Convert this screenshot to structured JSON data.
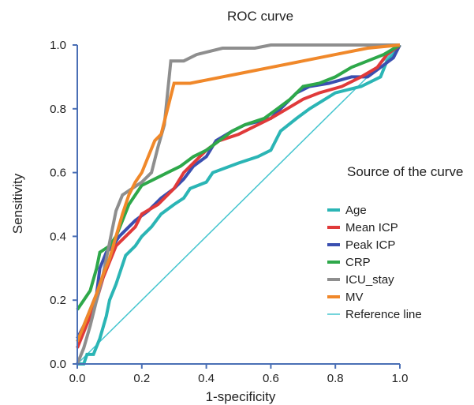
{
  "chart_data": {
    "type": "line",
    "title": "ROC curve",
    "xlabel": "1-specificity",
    "ylabel": "Sensitivity",
    "xlim": [
      0,
      1
    ],
    "ylim": [
      0,
      1
    ],
    "xticks": [
      "0.0",
      "0.2",
      "0.4",
      "0.6",
      "0.8",
      "1.0"
    ],
    "yticks": [
      "0.0",
      "0.2",
      "0.4",
      "0.6",
      "0.8",
      "1.0"
    ],
    "grid": false,
    "legend": {
      "title": "Source of the curve",
      "placement": "right",
      "entries": [
        "Age",
        "Mean ICP",
        "Peak ICP",
        "CRP",
        "ICU_stay",
        "MV",
        "Reference line"
      ]
    },
    "series": [
      {
        "name": "Age",
        "color": "#2bb5b5",
        "points": [
          [
            0.0,
            0.0
          ],
          [
            0.02,
            0.0
          ],
          [
            0.03,
            0.03
          ],
          [
            0.05,
            0.03
          ],
          [
            0.07,
            0.08
          ],
          [
            0.09,
            0.15
          ],
          [
            0.1,
            0.2
          ],
          [
            0.12,
            0.25
          ],
          [
            0.15,
            0.34
          ],
          [
            0.18,
            0.37
          ],
          [
            0.2,
            0.4
          ],
          [
            0.23,
            0.43
          ],
          [
            0.26,
            0.47
          ],
          [
            0.3,
            0.5
          ],
          [
            0.33,
            0.52
          ],
          [
            0.35,
            0.55
          ],
          [
            0.4,
            0.57
          ],
          [
            0.42,
            0.6
          ],
          [
            0.5,
            0.63
          ],
          [
            0.56,
            0.65
          ],
          [
            0.6,
            0.67
          ],
          [
            0.63,
            0.73
          ],
          [
            0.68,
            0.77
          ],
          [
            0.72,
            0.8
          ],
          [
            0.8,
            0.85
          ],
          [
            0.88,
            0.87
          ],
          [
            0.94,
            0.9
          ],
          [
            0.96,
            0.95
          ],
          [
            0.98,
            0.97
          ],
          [
            1.0,
            1.0
          ]
        ]
      },
      {
        "name": "Mean ICP",
        "color": "#e03a3a",
        "points": [
          [
            0.0,
            0.05
          ],
          [
            0.02,
            0.1
          ],
          [
            0.04,
            0.15
          ],
          [
            0.06,
            0.2
          ],
          [
            0.08,
            0.27
          ],
          [
            0.1,
            0.32
          ],
          [
            0.12,
            0.37
          ],
          [
            0.15,
            0.4
          ],
          [
            0.18,
            0.43
          ],
          [
            0.2,
            0.47
          ],
          [
            0.25,
            0.5
          ],
          [
            0.3,
            0.55
          ],
          [
            0.33,
            0.6
          ],
          [
            0.36,
            0.63
          ],
          [
            0.4,
            0.67
          ],
          [
            0.44,
            0.7
          ],
          [
            0.5,
            0.72
          ],
          [
            0.56,
            0.75
          ],
          [
            0.6,
            0.77
          ],
          [
            0.65,
            0.8
          ],
          [
            0.7,
            0.83
          ],
          [
            0.75,
            0.85
          ],
          [
            0.82,
            0.87
          ],
          [
            0.88,
            0.9
          ],
          [
            0.93,
            0.93
          ],
          [
            0.96,
            0.97
          ],
          [
            1.0,
            1.0
          ]
        ]
      },
      {
        "name": "Peak ICP",
        "color": "#3a4fb0",
        "points": [
          [
            0.0,
            0.08
          ],
          [
            0.02,
            0.12
          ],
          [
            0.04,
            0.17
          ],
          [
            0.06,
            0.22
          ],
          [
            0.07,
            0.3
          ],
          [
            0.09,
            0.35
          ],
          [
            0.11,
            0.37
          ],
          [
            0.13,
            0.4
          ],
          [
            0.16,
            0.43
          ],
          [
            0.18,
            0.45
          ],
          [
            0.22,
            0.48
          ],
          [
            0.26,
            0.52
          ],
          [
            0.3,
            0.55
          ],
          [
            0.33,
            0.58
          ],
          [
            0.36,
            0.62
          ],
          [
            0.4,
            0.65
          ],
          [
            0.43,
            0.7
          ],
          [
            0.48,
            0.73
          ],
          [
            0.52,
            0.75
          ],
          [
            0.6,
            0.77
          ],
          [
            0.63,
            0.8
          ],
          [
            0.68,
            0.85
          ],
          [
            0.72,
            0.87
          ],
          [
            0.78,
            0.88
          ],
          [
            0.85,
            0.9
          ],
          [
            0.9,
            0.9
          ],
          [
            0.94,
            0.93
          ],
          [
            0.98,
            0.96
          ],
          [
            1.0,
            1.0
          ]
        ]
      },
      {
        "name": "CRP",
        "color": "#2ea84a",
        "points": [
          [
            0.0,
            0.17
          ],
          [
            0.02,
            0.2
          ],
          [
            0.04,
            0.23
          ],
          [
            0.06,
            0.3
          ],
          [
            0.07,
            0.35
          ],
          [
            0.1,
            0.37
          ],
          [
            0.12,
            0.4
          ],
          [
            0.14,
            0.45
          ],
          [
            0.16,
            0.5
          ],
          [
            0.18,
            0.53
          ],
          [
            0.2,
            0.56
          ],
          [
            0.24,
            0.58
          ],
          [
            0.28,
            0.6
          ],
          [
            0.32,
            0.62
          ],
          [
            0.36,
            0.65
          ],
          [
            0.4,
            0.67
          ],
          [
            0.44,
            0.7
          ],
          [
            0.48,
            0.73
          ],
          [
            0.52,
            0.75
          ],
          [
            0.58,
            0.77
          ],
          [
            0.62,
            0.8
          ],
          [
            0.66,
            0.83
          ],
          [
            0.7,
            0.87
          ],
          [
            0.75,
            0.88
          ],
          [
            0.8,
            0.9
          ],
          [
            0.85,
            0.93
          ],
          [
            0.9,
            0.95
          ],
          [
            0.95,
            0.97
          ],
          [
            1.0,
            1.0
          ]
        ]
      },
      {
        "name": "ICU_stay",
        "color": "#8e8e8e",
        "points": [
          [
            0.0,
            0.0
          ],
          [
            0.02,
            0.05
          ],
          [
            0.04,
            0.12
          ],
          [
            0.06,
            0.2
          ],
          [
            0.08,
            0.28
          ],
          [
            0.1,
            0.38
          ],
          [
            0.12,
            0.48
          ],
          [
            0.14,
            0.53
          ],
          [
            0.17,
            0.55
          ],
          [
            0.2,
            0.57
          ],
          [
            0.23,
            0.6
          ],
          [
            0.25,
            0.68
          ],
          [
            0.27,
            0.75
          ],
          [
            0.28,
            0.85
          ],
          [
            0.29,
            0.95
          ],
          [
            0.33,
            0.95
          ],
          [
            0.37,
            0.97
          ],
          [
            0.41,
            0.98
          ],
          [
            0.45,
            0.99
          ],
          [
            0.5,
            0.99
          ],
          [
            0.55,
            0.99
          ],
          [
            0.6,
            1.0
          ],
          [
            0.65,
            1.0
          ],
          [
            0.7,
            1.0
          ],
          [
            0.8,
            1.0
          ],
          [
            0.9,
            1.0
          ],
          [
            1.0,
            1.0
          ]
        ]
      },
      {
        "name": "MV",
        "color": "#f0882a",
        "points": [
          [
            0.0,
            0.07
          ],
          [
            0.02,
            0.12
          ],
          [
            0.04,
            0.17
          ],
          [
            0.06,
            0.22
          ],
          [
            0.08,
            0.28
          ],
          [
            0.1,
            0.33
          ],
          [
            0.12,
            0.4
          ],
          [
            0.14,
            0.47
          ],
          [
            0.16,
            0.53
          ],
          [
            0.18,
            0.57
          ],
          [
            0.2,
            0.6
          ],
          [
            0.22,
            0.65
          ],
          [
            0.24,
            0.7
          ],
          [
            0.26,
            0.72
          ],
          [
            0.28,
            0.8
          ],
          [
            0.3,
            0.88
          ],
          [
            0.35,
            0.88
          ],
          [
            0.4,
            0.89
          ],
          [
            0.5,
            0.91
          ],
          [
            0.6,
            0.93
          ],
          [
            0.7,
            0.95
          ],
          [
            0.8,
            0.97
          ],
          [
            0.9,
            0.99
          ],
          [
            1.0,
            1.0
          ]
        ]
      },
      {
        "name": "Reference line",
        "color": "#45c5cf",
        "points": [
          [
            0.0,
            0.0
          ],
          [
            1.0,
            1.0
          ]
        ]
      }
    ]
  }
}
